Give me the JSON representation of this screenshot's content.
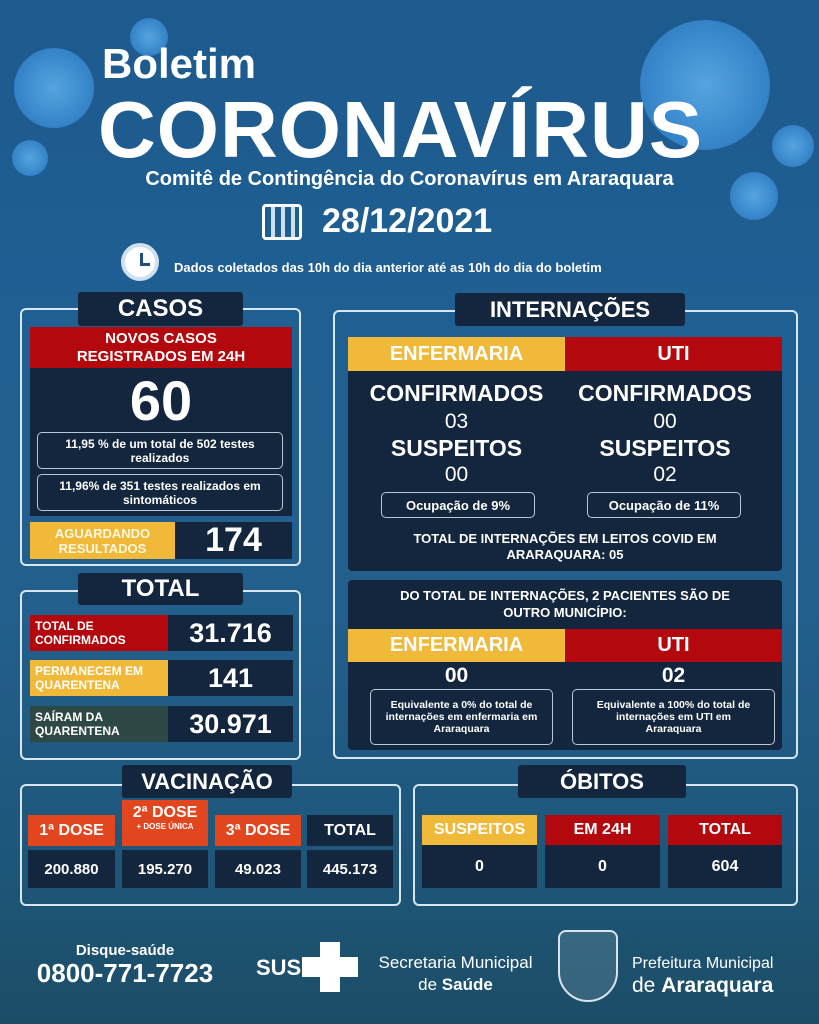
{
  "header": {
    "kicker": "Boletim",
    "title": "CORONAVÍRUS",
    "subtitle": "Comitê de Contingência do Coronavírus em Araraquara",
    "date": "28/12/2021",
    "note": "Dados coletados das 10h do dia anterior até as 10h do dia do boletim"
  },
  "casos": {
    "label": "CASOS",
    "new_title": "NOVOS CASOS REGISTRADOS EM 24H",
    "new_value": "60",
    "stat1": "11,95 % de um total de 502 testes realizados",
    "stat2": "11,96% de 351 testes realizados em sintomáticos",
    "awaiting_label": "AGUARDANDO RESULTADOS",
    "awaiting_value": "174"
  },
  "total": {
    "label": "TOTAL",
    "rows": [
      {
        "label": "TOTAL DE CONFIRMADOS",
        "value": "31.716"
      },
      {
        "label": "PERMANECEM EM QUARENTENA",
        "value": "141"
      },
      {
        "label": "SAÍRAM DA QUARENTENA",
        "value": "30.971"
      }
    ]
  },
  "internacoes": {
    "label": "INTERNAÇÕES",
    "enfermaria": {
      "header": "ENFERMARIA",
      "confirmados_label": "CONFIRMADOS",
      "confirmados": "03",
      "suspeitos_label": "SUSPEITOS",
      "suspeitos": "00",
      "ocupacao": "Ocupação de 9%"
    },
    "uti": {
      "header": "UTI",
      "confirmados_label": "CONFIRMADOS",
      "confirmados": "00",
      "suspeitos_label": "SUSPEITOS",
      "suspeitos": "02",
      "ocupacao": "Ocupação de 11%"
    },
    "total_text": "TOTAL DE INTERNAÇÕES EM LEITOS COVID EM ARARAQUARA: 05",
    "outros": {
      "title": "DO TOTAL DE INTERNAÇÕES, 2 PACIENTES SÃO DE OUTRO MUNICÍPIO:",
      "enfermaria_header": "ENFERMARIA",
      "enfermaria_value": "00",
      "enfermaria_note": "Equivalente a 0% do total de internações em enfermaria em Araraquara",
      "uti_header": "UTI",
      "uti_value": "02",
      "uti_note": "Equivalente a 100% do total de internações em UTI em Araraquara"
    }
  },
  "vacinacao": {
    "label": "VACINAÇÃO",
    "cols": [
      {
        "header": "1ª DOSE",
        "value": "200.880"
      },
      {
        "header": "2ª DOSE",
        "header_sub": "+ DOSE ÚNICA",
        "value": "195.270"
      },
      {
        "header": "3ª DOSE",
        "value": "49.023"
      },
      {
        "header": "TOTAL",
        "value": "445.173"
      }
    ]
  },
  "obitos": {
    "label": "ÓBITOS",
    "cols": [
      {
        "header": "SUSPEITOS",
        "value": "0"
      },
      {
        "header": "EM 24H",
        "value": "0"
      },
      {
        "header": "TOTAL",
        "value": "604"
      }
    ]
  },
  "footer": {
    "phone_label": "Disque-saúde",
    "phone": "0800-771-7723",
    "sus": "SUS",
    "secretaria_line1": "Secretaria Municipal",
    "secretaria_pre": "de ",
    "secretaria_bold": "Saúde",
    "prefeitura_line1": "Prefeitura Municipal",
    "prefeitura_pre": "de ",
    "prefeitura_bold": "Araraquara"
  },
  "colors": {
    "red": "#b3090e",
    "yellow": "#f0b93a",
    "orange": "#e2461f",
    "navy": "#13263d"
  },
  "icons": [
    "virus-icon",
    "calendar-icon",
    "clock-icon",
    "sus-cross-icon",
    "coat-of-arms-icon"
  ]
}
